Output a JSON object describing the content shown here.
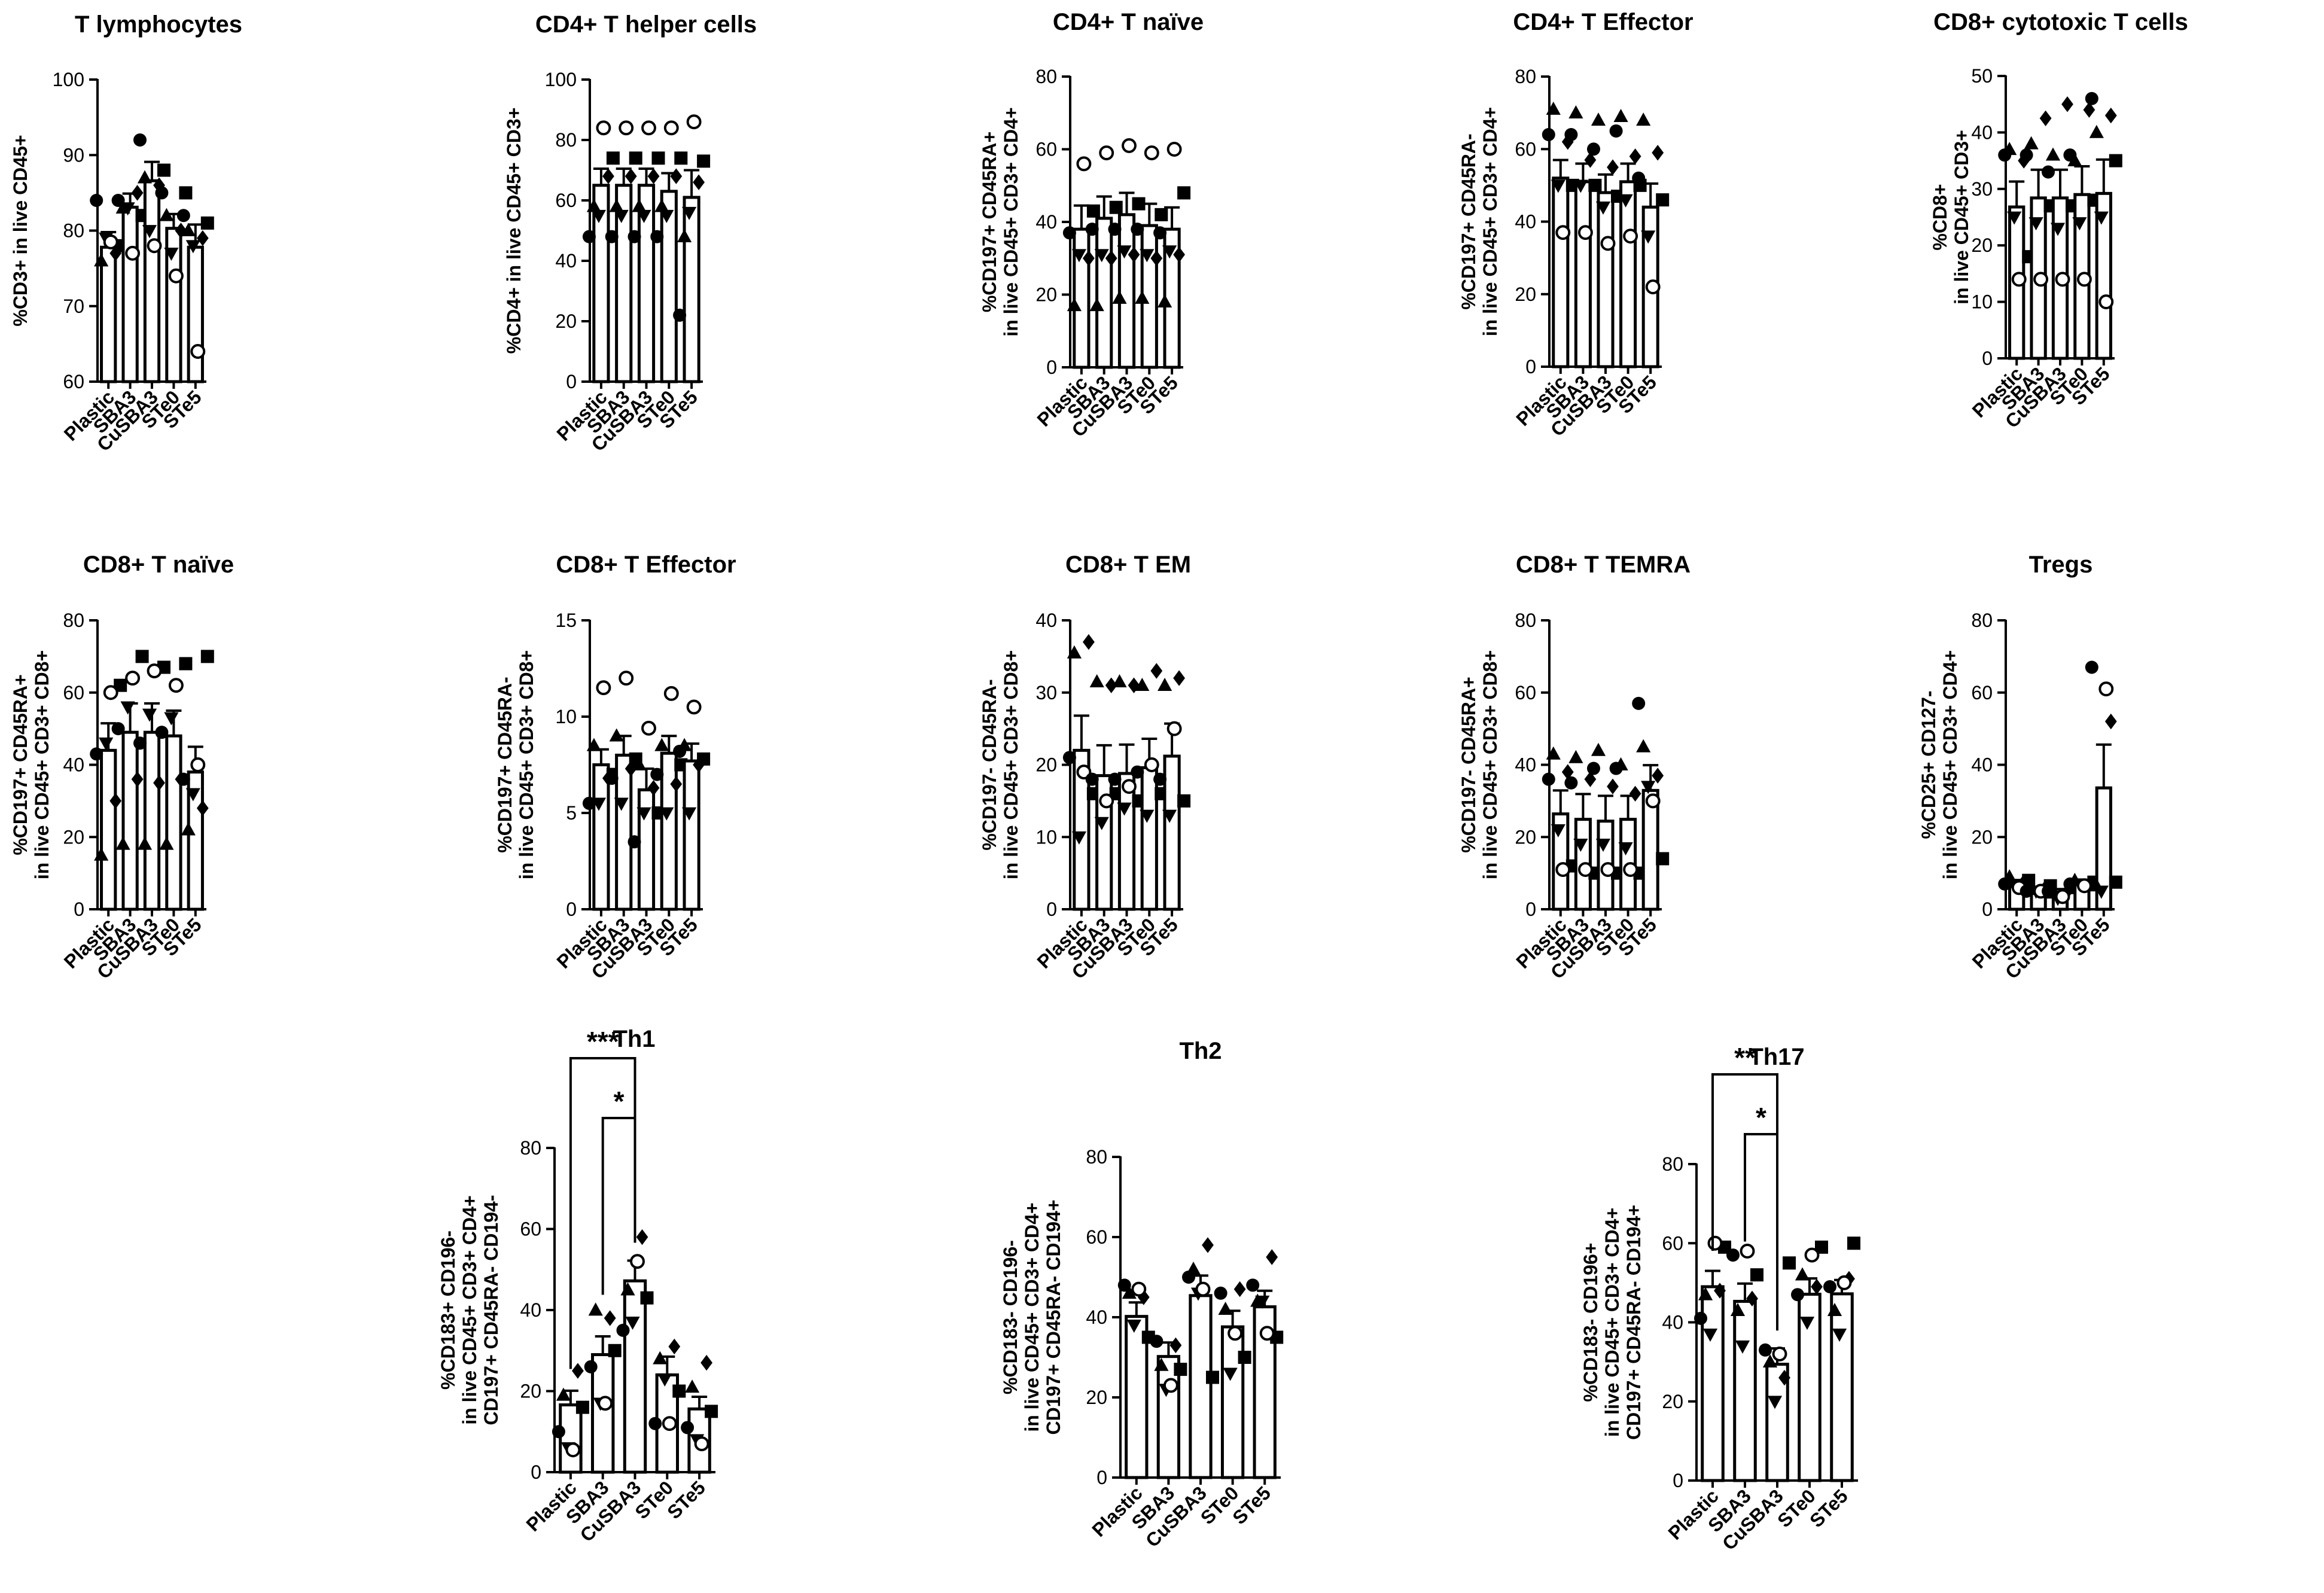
{
  "figure": {
    "categories": [
      "Plastic",
      "SBA3",
      "CuSBA3",
      "STe0",
      "STe5"
    ],
    "marker_shapes": [
      "circle",
      "square",
      "triangle",
      "diamond",
      "invtriangle",
      "opencircle"
    ],
    "colors": {
      "bar_fill": "#ffffff",
      "stroke": "#000000",
      "text": "#000000"
    }
  },
  "chart_data": [
    {
      "id": "t-lymphocytes",
      "type": "bar",
      "title": "T lymphocytes",
      "ylabel": [
        "%CD3+ in live CD45+"
      ],
      "ylim": [
        60,
        100
      ],
      "yticks": [
        60,
        70,
        80,
        90,
        100
      ],
      "categories": [
        "Plastic",
        "SBA3",
        "CuSBA3",
        "STe0",
        "STe5"
      ],
      "values": [
        77.8,
        83.1,
        86.6,
        80.3,
        77.8
      ],
      "sem": [
        2.0,
        1.8,
        2.5,
        1.9,
        3.0
      ],
      "points": [
        [
          84,
          78,
          76,
          77,
          79,
          78.5
        ],
        [
          84,
          82,
          83,
          85,
          83,
          77
        ],
        [
          92,
          88,
          87,
          86,
          80,
          78
        ],
        [
          85,
          85,
          82,
          80,
          77,
          74
        ],
        [
          82,
          81,
          80,
          79,
          78,
          64
        ]
      ],
      "significance": []
    },
    {
      "id": "cd4-helper",
      "type": "bar",
      "title": "CD4+ T helper cells",
      "ylabel": [
        "%CD4+ in live CD45+ CD3+"
      ],
      "ylim": [
        0,
        100
      ],
      "yticks": [
        0,
        20,
        40,
        60,
        80,
        100
      ],
      "categories": [
        "Plastic",
        "SBA3",
        "CuSBA3",
        "STe0",
        "STe5"
      ],
      "values": [
        65,
        65,
        65,
        63,
        61
      ],
      "sem": [
        5.5,
        5.5,
        5.5,
        6.0,
        9.0
      ],
      "points": [
        [
          48,
          74,
          58,
          68,
          55,
          84
        ],
        [
          48,
          74,
          58,
          68,
          55,
          84
        ],
        [
          48,
          74,
          58,
          68,
          55,
          84
        ],
        [
          48,
          74,
          58,
          68,
          55,
          84
        ],
        [
          22,
          73,
          48,
          66,
          56,
          86
        ]
      ],
      "significance": []
    },
    {
      "id": "cd4-naive",
      "type": "bar",
      "title": "CD4+ T naïve",
      "ylabel": [
        "%CD197+ CD45RA+",
        "in live CD45+ CD3+ CD4+"
      ],
      "ylim": [
        0,
        80
      ],
      "yticks": [
        0,
        20,
        40,
        60,
        80
      ],
      "categories": [
        "Plastic",
        "SBA3",
        "CuSBA3",
        "STe0",
        "STe5"
      ],
      "values": [
        38,
        41,
        42,
        39,
        38
      ],
      "sem": [
        6.5,
        6.0,
        6.0,
        6.0,
        6.0
      ],
      "points": [
        [
          37,
          43,
          17,
          30,
          31,
          56
        ],
        [
          38,
          44,
          17,
          30,
          31,
          59
        ],
        [
          38,
          45,
          19,
          31,
          32,
          61
        ],
        [
          38,
          42,
          19,
          30,
          31,
          59
        ],
        [
          37,
          48,
          18,
          31,
          32,
          60
        ]
      ],
      "significance": []
    },
    {
      "id": "cd4-effector",
      "type": "bar",
      "title": "CD4+ T Effector",
      "ylabel": [
        "%CD197+ CD45RA-",
        "in live CD45+ CD3+ CD4+"
      ],
      "ylim": [
        0,
        80
      ],
      "yticks": [
        0,
        20,
        40,
        60,
        80
      ],
      "categories": [
        "Plastic",
        "SBA3",
        "CuSBA3",
        "STe0",
        "STe5"
      ],
      "values": [
        52,
        51,
        48,
        51,
        44
      ],
      "sem": [
        5.0,
        5.0,
        5.0,
        5.0,
        6.5
      ],
      "points": [
        [
          64,
          50,
          71,
          62,
          50,
          37
        ],
        [
          64,
          50,
          70,
          57,
          50,
          37
        ],
        [
          60,
          47,
          68,
          55,
          44,
          34
        ],
        [
          65,
          50,
          69,
          58,
          46,
          36
        ],
        [
          52,
          46,
          68,
          59,
          36,
          22
        ]
      ],
      "significance": []
    },
    {
      "id": "cd8-cytotoxic",
      "type": "bar",
      "title": "CD8+ cytotoxic T cells",
      "ylabel": [
        "%CD8+",
        "in live CD45+ CD3+"
      ],
      "ylim": [
        0,
        50
      ],
      "yticks": [
        0,
        10,
        20,
        30,
        40,
        50
      ],
      "categories": [
        "Plastic",
        "SBA3",
        "CuSBA3",
        "STe0",
        "STe5"
      ],
      "values": [
        26.8,
        28.4,
        28.4,
        29.0,
        29.2
      ],
      "sem": [
        4.5,
        5.0,
        5.0,
        5.0,
        6.0
      ],
      "points": [
        [
          36,
          18,
          37,
          35,
          25,
          14
        ],
        [
          36,
          27,
          38,
          42.5,
          24,
          14
        ],
        [
          33,
          27,
          36,
          45,
          23,
          14
        ],
        [
          36,
          28,
          35,
          44,
          24,
          14
        ],
        [
          46,
          35,
          40,
          43,
          25,
          10
        ]
      ],
      "significance": []
    },
    {
      "id": "cd8-naive",
      "type": "bar",
      "title": "CD8+ T naïve",
      "ylabel": [
        "%CD197+ CD45RA+",
        "in live CD45+ CD3+ CD8+"
      ],
      "ylim": [
        0,
        80
      ],
      "yticks": [
        0,
        20,
        40,
        60,
        80
      ],
      "categories": [
        "Plastic",
        "SBA3",
        "CuSBA3",
        "STe0",
        "STe5"
      ],
      "values": [
        44,
        49,
        49,
        48,
        38
      ],
      "sem": [
        7.5,
        8.0,
        8.0,
        7.0,
        7.0
      ],
      "points": [
        [
          43,
          62,
          15,
          30,
          46,
          60
        ],
        [
          50,
          70,
          18,
          36,
          56,
          64
        ],
        [
          46,
          67,
          18,
          35,
          54,
          66
        ],
        [
          49,
          68,
          18,
          36,
          53,
          62
        ],
        [
          36,
          70,
          22,
          28,
          32,
          40
        ]
      ],
      "significance": []
    },
    {
      "id": "cd8-effector",
      "type": "bar",
      "title": "CD8+ T Effector",
      "ylabel": [
        "%CD197+ CD45RA-",
        "in live CD45+ CD3+ CD8+"
      ],
      "ylim": [
        0,
        15
      ],
      "yticks": [
        0,
        5,
        10,
        15
      ],
      "categories": [
        "Plastic",
        "SBA3",
        "CuSBA3",
        "STe0",
        "STe5"
      ],
      "values": [
        7.5,
        8.0,
        6.2,
        8.1,
        7.7
      ],
      "sem": [
        0.8,
        1.0,
        1.1,
        0.9,
        0.9
      ],
      "points": [
        [
          5.5,
          7.0,
          8.5,
          6.8,
          5.5,
          11.5
        ],
        [
          6.8,
          7.8,
          9.0,
          7.3,
          5.5,
          12.0
        ],
        [
          3.5,
          5.0,
          7.5,
          6.3,
          5.0,
          9.4
        ],
        [
          7.0,
          7.5,
          8.5,
          6.5,
          5.0,
          11.2
        ],
        [
          8.2,
          7.8,
          8.5,
          7.5,
          5.0,
          10.5
        ]
      ],
      "significance": []
    },
    {
      "id": "cd8-em",
      "type": "bar",
      "title": "CD8+ T EM",
      "ylabel": [
        "%CD197- CD45RA-",
        "in live CD45+ CD3+ CD8+"
      ],
      "ylim": [
        0,
        40
      ],
      "yticks": [
        0,
        10,
        20,
        30,
        40
      ],
      "categories": [
        "Plastic",
        "SBA3",
        "CuSBA3",
        "STe0",
        "STe5"
      ],
      "values": [
        22,
        18.5,
        18.8,
        19.6,
        21.2
      ],
      "sem": [
        4.8,
        4.2,
        4.0,
        4.0,
        4.5
      ],
      "points": [
        [
          21,
          16,
          35.5,
          37,
          10,
          19
        ],
        [
          18,
          16,
          31.5,
          31,
          12,
          15
        ],
        [
          18,
          15,
          31.5,
          31,
          14,
          17
        ],
        [
          19,
          16,
          31,
          33,
          13,
          20
        ],
        [
          18,
          15,
          31,
          32,
          13,
          25
        ]
      ],
      "significance": []
    },
    {
      "id": "cd8-temra",
      "type": "bar",
      "title": "CD8+ T TEMRA",
      "ylabel": [
        "%CD197- CD45RA+",
        "in live CD45+ CD3+ CD8+"
      ],
      "ylim": [
        0,
        80
      ],
      "yticks": [
        0,
        20,
        40,
        60,
        80
      ],
      "categories": [
        "Plastic",
        "SBA3",
        "CuSBA3",
        "STe0",
        "STe5"
      ],
      "values": [
        26.4,
        24.9,
        24.4,
        24.9,
        32.9
      ],
      "sem": [
        6.5,
        7.0,
        7.0,
        6.5,
        7.0
      ],
      "points": [
        [
          36,
          12,
          43,
          38,
          22,
          11
        ],
        [
          35,
          10,
          42,
          36,
          18,
          11
        ],
        [
          39,
          10,
          44,
          34,
          18,
          11
        ],
        [
          39,
          10,
          40,
          32,
          17,
          11
        ],
        [
          57,
          14,
          45,
          37,
          34,
          30
        ]
      ],
      "significance": []
    },
    {
      "id": "tregs",
      "type": "bar",
      "title": "Tregs",
      "ylabel": [
        "%CD25+ CD127-",
        "in live CD45+ CD3+ CD4+"
      ],
      "ylim": [
        0,
        80
      ],
      "yticks": [
        0,
        20,
        40,
        60,
        80
      ],
      "categories": [
        "Plastic",
        "SBA3",
        "CuSBA3",
        "STe0",
        "STe5"
      ],
      "values": [
        7.5,
        5.8,
        4.8,
        7.2,
        33.6
      ],
      "sem": [
        0.6,
        0.4,
        0.8,
        0.5,
        12.0
      ],
      "points": [
        [
          7,
          8,
          9,
          7.5,
          6.5,
          6
        ],
        [
          5,
          6.5,
          5.5,
          6,
          5,
          5
        ],
        [
          5,
          6,
          4.5,
          5,
          3,
          3.5
        ],
        [
          7,
          7.5,
          8,
          7,
          7,
          6.5
        ],
        [
          67,
          7.5,
          6.5,
          52,
          5,
          61
        ]
      ],
      "significance": []
    },
    {
      "id": "th1",
      "type": "bar",
      "title": "Th1",
      "ylabel": [
        "%CD183+ CD196-",
        "in live CD45+ CD3+ CD4+",
        "CD197+ CD45RA- CD194-"
      ],
      "ylim": [
        0,
        80
      ],
      "yticks": [
        0,
        20,
        40,
        60,
        80
      ],
      "categories": [
        "Plastic",
        "SBA3",
        "CuSBA3",
        "STe0",
        "STe5"
      ],
      "values": [
        16.6,
        29.0,
        47.2,
        24.0,
        15.6
      ],
      "sem": [
        3.5,
        4.5,
        5.0,
        4.5,
        3.0
      ],
      "points": [
        [
          10,
          16,
          19,
          25,
          6,
          5.5
        ],
        [
          26,
          30,
          40,
          38,
          17,
          17
        ],
        [
          35,
          43,
          45,
          58,
          37,
          52
        ],
        [
          12,
          20,
          28,
          31,
          23,
          12
        ],
        [
          11,
          15,
          21,
          27,
          8,
          7
        ]
      ],
      "significance": [
        {
          "from": 0,
          "to": 2,
          "label": "***"
        },
        {
          "from": 1,
          "to": 2,
          "label": "*"
        }
      ]
    },
    {
      "id": "th2",
      "type": "bar",
      "title": "Th2",
      "ylabel": [
        "%CD183- CD196-",
        "in live CD45+ CD3+ CD4+",
        "CD197+ CD45RA- CD194+"
      ],
      "ylim": [
        0,
        80
      ],
      "yticks": [
        0,
        20,
        40,
        60,
        80
      ],
      "categories": [
        "Plastic",
        "SBA3",
        "CuSBA3",
        "STe0",
        "STe5"
      ],
      "values": [
        40.2,
        30.2,
        45.4,
        37.6,
        42.6
      ],
      "sem": [
        3.5,
        3.5,
        5.0,
        4.0,
        4.0
      ],
      "points": [
        [
          48,
          35,
          46,
          45,
          38,
          47
        ],
        [
          34,
          27,
          28,
          33,
          22,
          23
        ],
        [
          50,
          25,
          52,
          58,
          46,
          47
        ],
        [
          46,
          30,
          42,
          47,
          26,
          36
        ],
        [
          48,
          35,
          44,
          55,
          44,
          36
        ]
      ],
      "significance": []
    },
    {
      "id": "th17",
      "type": "bar",
      "title": "Th17",
      "ylabel": [
        "%CD183- CD196+",
        "in live CD45+ CD3+ CD4+",
        "CD197+ CD45RA- CD194+"
      ],
      "ylim": [
        0,
        80
      ],
      "yticks": [
        0,
        20,
        40,
        60,
        80
      ],
      "categories": [
        "Plastic",
        "SBA3",
        "CuSBA3",
        "STe0",
        "STe5"
      ],
      "values": [
        49.0,
        45.3,
        29.4,
        47.1,
        47.2
      ],
      "sem": [
        4.0,
        4.5,
        4.0,
        4.0,
        3.5
      ],
      "points": [
        [
          41,
          59,
          47,
          48,
          37,
          60
        ],
        [
          57,
          52,
          43,
          46,
          34,
          58
        ],
        [
          33,
          55,
          30,
          26,
          20,
          32
        ],
        [
          47,
          59,
          52,
          49,
          40,
          57
        ],
        [
          49,
          60,
          43,
          51,
          37,
          50
        ]
      ],
      "significance": [
        {
          "from": 0,
          "to": 2,
          "label": "**"
        },
        {
          "from": 1,
          "to": 2,
          "label": "*"
        }
      ]
    }
  ]
}
